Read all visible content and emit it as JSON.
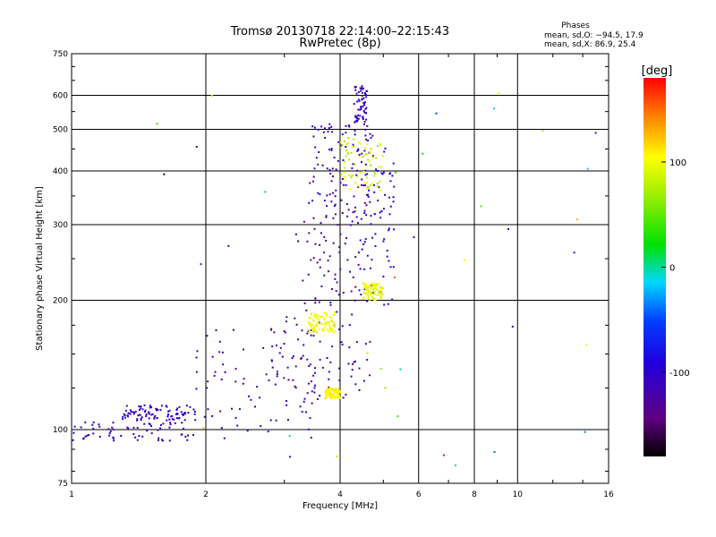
{
  "chart_data": {
    "type": "scatter",
    "title": "Tromsø 20130718 22:14:00–22:15:43",
    "subtitle": "RwPretec (8p)",
    "xlabel": "Frequency [MHz]",
    "ylabel": "Stationary phase Virtual Height [km]",
    "x_scale": "log",
    "y_scale": "log",
    "xlim": [
      1,
      16
    ],
    "ylim": [
      75,
      750
    ],
    "x_ticks": [
      1,
      2,
      4,
      6,
      8,
      10,
      16
    ],
    "y_ticks": [
      75,
      100,
      200,
      300,
      400,
      500,
      600,
      750
    ],
    "grid": true,
    "legend": {
      "title": "Phases",
      "lines": [
        "mean, sd,O: −94.5, 17.9",
        "mean, sd,X:  86.9, 25.4"
      ],
      "placement": "top-right"
    },
    "colorbar": {
      "label": "[deg]",
      "range": [
        -180,
        180
      ],
      "ticks": [
        100,
        0,
        -100
      ],
      "colormap": "rainbow"
    },
    "traces": [
      {
        "kind": "cluster",
        "x_range": [
          1.0,
          1.9
        ],
        "h_range": [
          94,
          104
        ],
        "phase_range": [
          -120,
          -95
        ]
      },
      {
        "kind": "cluster",
        "x_range": [
          1.3,
          1.9
        ],
        "h_range": [
          105,
          114
        ],
        "phase_range": [
          -115,
          -95
        ]
      },
      {
        "kind": "cluster",
        "x_range": [
          1.9,
          3.6
        ],
        "h_range": [
          95,
          175
        ],
        "phase_range": [
          -140,
          -95
        ]
      },
      {
        "kind": "cluster",
        "x_range": [
          2.8,
          4.7
        ],
        "h_range": [
          118,
          190
        ],
        "phase_range": [
          -145,
          -100
        ]
      },
      {
        "kind": "cluster",
        "x_range": [
          3.3,
          4.4
        ],
        "h_range": [
          195,
          330
        ],
        "phase_range": [
          -150,
          -115
        ]
      },
      {
        "kind": "cluster",
        "x_range": [
          3.4,
          4.8
        ],
        "h_range": [
          330,
          520
        ],
        "phase_range": [
          -130,
          -95
        ]
      },
      {
        "kind": "cluster",
        "x_range": [
          4.3,
          4.6
        ],
        "h_range": [
          520,
          630
        ],
        "phase_range": [
          -120,
          -95
        ]
      },
      {
        "kind": "cluster",
        "x_range": [
          4.4,
          5.3
        ],
        "h_range": [
          195,
          480
        ],
        "phase_range": [
          -110,
          -80
        ]
      },
      {
        "kind": "cluster",
        "x_range": [
          3.4,
          3.9
        ],
        "h_range": [
          168,
          188
        ],
        "phase_range": [
          90,
          110
        ]
      },
      {
        "kind": "cluster",
        "x_range": [
          4.5,
          5.0
        ],
        "h_range": [
          200,
          220
        ],
        "phase_range": [
          85,
          105
        ]
      },
      {
        "kind": "cluster",
        "x_range": [
          3.7,
          4.0
        ],
        "h_range": [
          118,
          125
        ],
        "phase_range": [
          100,
          115
        ]
      },
      {
        "kind": "cluster",
        "x_range": [
          4.0,
          5.0
        ],
        "h_range": [
          360,
          480
        ],
        "phase_range": [
          60,
          110
        ]
      },
      {
        "kind": "sparse",
        "x_range": [
          1.5,
          15
        ],
        "h_range": [
          78,
          640
        ],
        "phase_range": [
          -180,
          180
        ]
      }
    ]
  }
}
